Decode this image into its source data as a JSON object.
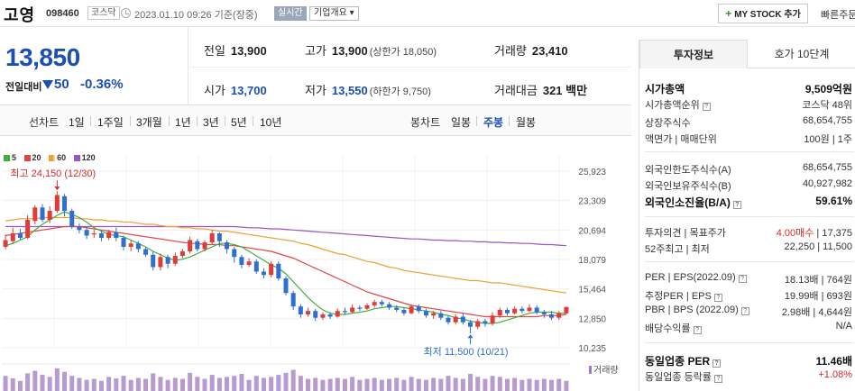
{
  "header": {
    "stock_name": "고영",
    "stock_code": "098460",
    "market": "코스닥",
    "datetime": "2023.01.10 09:26",
    "basis": "기준(장중)",
    "realtime_label": "실시간",
    "company_overview": "기업개요",
    "my_stock_label": "MY STOCK 추가",
    "quick_search": "빠른주문"
  },
  "summary": {
    "price": "13,850",
    "change_label": "전일대비",
    "change": "50",
    "change_pct": "-0.36%",
    "prev_close_label": "전일",
    "prev_close": "13,900",
    "high_label": "고가",
    "high": "13,900",
    "upper_limit": "(상한가 18,050)",
    "volume_label": "거래량",
    "volume": "23,410",
    "open_label": "시가",
    "open": "13,700",
    "low_label": "저가",
    "low": "13,550",
    "lower_limit": "(하한가 9,750)",
    "amount_label": "거래대금",
    "amount": "321",
    "amount_unit": "백만"
  },
  "period": {
    "line_title": "선차트",
    "line_items": [
      "1일",
      "1주일",
      "3개월",
      "1년",
      "3년",
      "5년",
      "10년"
    ],
    "candle_title": "봉차트",
    "candle_items": [
      "일봉",
      "주봉",
      "월봉"
    ],
    "candle_selected": "주봉"
  },
  "chart_data": {
    "type": "candlestick",
    "legend": [
      "5",
      "20",
      "60",
      "120"
    ],
    "legend_colors": [
      "#3cb13c",
      "#e04545",
      "#f0a030",
      "#9a55c0"
    ],
    "y_ticks": [
      25923,
      23309,
      20694,
      18079,
      15464,
      12850,
      10235
    ],
    "y_tick_labels": [
      "25,923",
      "23,309",
      "20,694",
      "18,079",
      "15,464",
      "12,850",
      "10,235"
    ],
    "ylim": [
      10235,
      25923
    ],
    "high_annotation": "최고 24,150 (12/30)",
    "low_annotation": "최저 11,500 (10/21)",
    "volume_label": "거래량",
    "candles": [
      [
        19200,
        19800,
        20300,
        19000
      ],
      [
        19700,
        20400,
        20900,
        19500
      ],
      [
        20400,
        20000,
        20800,
        19800
      ],
      [
        20000,
        21600,
        22000,
        19900
      ],
      [
        21500,
        22700,
        22900,
        21200
      ],
      [
        22700,
        21600,
        23000,
        21400
      ],
      [
        21600,
        22400,
        22800,
        21300
      ],
      [
        22400,
        23800,
        24150,
        22200
      ],
      [
        23700,
        22400,
        23900,
        21900
      ],
      [
        22400,
        21000,
        22600,
        20800
      ],
      [
        21000,
        20700,
        21300,
        20400
      ],
      [
        20700,
        20200,
        21000,
        19900
      ],
      [
        20300,
        20400,
        20700,
        20000
      ],
      [
        20400,
        20000,
        20600,
        19700
      ],
      [
        20000,
        20500,
        20700,
        19800
      ],
      [
        20500,
        20000,
        20900,
        19700
      ],
      [
        20000,
        19200,
        20200,
        18900
      ],
      [
        19200,
        19500,
        19800,
        18800
      ],
      [
        19500,
        19000,
        19700,
        18700
      ],
      [
        19000,
        18500,
        19200,
        18300
      ],
      [
        18500,
        17400,
        18800,
        17100
      ],
      [
        17400,
        18300,
        18600,
        17100
      ],
      [
        18300,
        17700,
        18500,
        17300
      ],
      [
        17700,
        18400,
        18700,
        17500
      ],
      [
        18400,
        18800,
        19000,
        18200
      ],
      [
        18800,
        19800,
        20100,
        18600
      ],
      [
        19700,
        19000,
        19900,
        18800
      ],
      [
        19000,
        19600,
        19800,
        18800
      ],
      [
        19600,
        20400,
        20700,
        19400
      ],
      [
        20400,
        19700,
        20500,
        19200
      ],
      [
        19600,
        19000,
        19800,
        18600
      ],
      [
        19000,
        18300,
        19200,
        17800
      ],
      [
        18300,
        17600,
        18500,
        17300
      ],
      [
        17600,
        17900,
        18200,
        17400
      ],
      [
        17900,
        17000,
        18100,
        16800
      ],
      [
        17000,
        16700,
        17300,
        16400
      ],
      [
        16700,
        17700,
        17900,
        16500
      ],
      [
        17700,
        16400,
        17900,
        16200
      ],
      [
        16400,
        15100,
        16600,
        14900
      ],
      [
        15100,
        13900,
        15300,
        13600
      ],
      [
        13900,
        13200,
        14100,
        12900
      ],
      [
        13200,
        13500,
        13800,
        13000
      ],
      [
        13500,
        12900,
        13700,
        12600
      ],
      [
        12900,
        13200,
        13400,
        12700
      ],
      [
        13200,
        13000,
        13400,
        12800
      ],
      [
        13000,
        13500,
        13700,
        12900
      ],
      [
        13500,
        13400,
        13800,
        13200
      ],
      [
        13400,
        13800,
        14100,
        13300
      ],
      [
        13800,
        13700,
        14000,
        13500
      ],
      [
        13700,
        14000,
        14200,
        13600
      ],
      [
        14000,
        14300,
        14500,
        13800
      ],
      [
        14300,
        14100,
        14500,
        13900
      ],
      [
        14100,
        13800,
        14300,
        13600
      ],
      [
        13800,
        13600,
        14000,
        13400
      ],
      [
        13600,
        13300,
        13800,
        13100
      ],
      [
        13300,
        13900,
        14100,
        13200
      ],
      [
        13900,
        13500,
        14100,
        13300
      ],
      [
        13500,
        13100,
        13700,
        12900
      ],
      [
        13100,
        13300,
        13500,
        12800
      ],
      [
        13300,
        12900,
        13500,
        12700
      ],
      [
        12900,
        12500,
        13100,
        12300
      ],
      [
        12500,
        13000,
        13200,
        12300
      ],
      [
        13000,
        12500,
        13300,
        12300
      ],
      [
        12500,
        12100,
        12700,
        11500
      ],
      [
        12100,
        12600,
        12800,
        11900
      ],
      [
        12600,
        12400,
        12800,
        12100
      ],
      [
        12400,
        13100,
        13400,
        12200
      ],
      [
        13100,
        13600,
        13800,
        12900
      ],
      [
        13600,
        13300,
        13800,
        13100
      ],
      [
        13300,
        13700,
        13900,
        13200
      ],
      [
        13700,
        13500,
        13900,
        13300
      ],
      [
        13500,
        13800,
        14100,
        13400
      ],
      [
        13800,
        13400,
        14000,
        13200
      ],
      [
        13400,
        13200,
        13600,
        12900
      ],
      [
        13200,
        12900,
        13500,
        12700
      ],
      [
        12900,
        13300,
        13500,
        12700
      ],
      [
        13300,
        13850,
        13900,
        13200
      ]
    ],
    "ma5": [
      19300,
      19500,
      19800,
      20100,
      20700,
      21200,
      21600,
      22000,
      22300,
      22100,
      21800,
      21400,
      20900,
      20600,
      20300,
      20200,
      20100,
      19800,
      19500,
      19200,
      18800,
      18500,
      18200,
      18000,
      18100,
      18300,
      18600,
      18900,
      19200,
      19500,
      19500,
      19400,
      19200,
      18800,
      18400,
      18000,
      17600,
      17300,
      16800,
      16100,
      15400,
      14700,
      14100,
      13600,
      13300,
      13200,
      13200,
      13300,
      13400,
      13500,
      13700,
      13800,
      13900,
      13900,
      13800,
      13700,
      13600,
      13500,
      13400,
      13200,
      13100,
      12900,
      12800,
      12600,
      12500,
      12400,
      12400,
      12500,
      12700,
      12900,
      13100,
      13300,
      13400,
      13400,
      13400,
      13300,
      13300
    ],
    "ma20": [
      20200,
      20300,
      20400,
      20500,
      20600,
      20700,
      20800,
      20900,
      21000,
      21000,
      21000,
      20900,
      20800,
      20700,
      20600,
      20500,
      20400,
      20300,
      20200,
      20100,
      20000,
      19900,
      19800,
      19700,
      19600,
      19500,
      19500,
      19400,
      19400,
      19400,
      19300,
      19300,
      19200,
      19100,
      19000,
      18900,
      18800,
      18600,
      18400,
      18200,
      17900,
      17600,
      17300,
      17000,
      16700,
      16400,
      16100,
      15800,
      15500,
      15200,
      15000,
      14800,
      14600,
      14400,
      14200,
      14000,
      13900,
      13800,
      13700,
      13600,
      13500,
      13400,
      13300,
      13200,
      13100,
      13000,
      13000,
      13000,
      13000,
      13000,
      13000,
      13000,
      13000,
      13100,
      13100,
      13100,
      13200
    ],
    "ma60": [
      21500,
      21600,
      21700,
      21700,
      21700,
      21800,
      21800,
      21800,
      21800,
      21800,
      21700,
      21700,
      21600,
      21600,
      21500,
      21500,
      21400,
      21400,
      21300,
      21200,
      21200,
      21100,
      21000,
      21000,
      20900,
      20900,
      20800,
      20800,
      20700,
      20600,
      20600,
      20500,
      20400,
      20300,
      20200,
      20100,
      20000,
      19900,
      19800,
      19700,
      19500,
      19400,
      19200,
      19000,
      18800,
      18600,
      18500,
      18300,
      18100,
      17900,
      17800,
      17600,
      17400,
      17300,
      17100,
      17000,
      16900,
      16800,
      16700,
      16600,
      16500,
      16400,
      16300,
      16200,
      16200,
      16100,
      16000,
      16000,
      15900,
      15800,
      15700,
      15600,
      15500,
      15400,
      15300,
      15200,
      15100
    ],
    "ma120": [
      21000,
      21000,
      21000,
      21000,
      21000,
      21000,
      21000,
      21000,
      21000,
      21000,
      21000,
      21000,
      21000,
      21000,
      21000,
      21000,
      21000,
      21000,
      21000,
      21000,
      21000,
      21000,
      21000,
      21000,
      21000,
      21000,
      21000,
      21000,
      21000,
      21000,
      21000,
      21000,
      20950,
      20900,
      20900,
      20850,
      20800,
      20800,
      20750,
      20700,
      20650,
      20600,
      20550,
      20500,
      20450,
      20400,
      20350,
      20300,
      20250,
      20200,
      20150,
      20100,
      20050,
      20000,
      19950,
      19900,
      19900,
      19850,
      19800,
      19800,
      19750,
      19750,
      19700,
      19700,
      19650,
      19650,
      19600,
      19600,
      19550,
      19550,
      19500,
      19500,
      19450,
      19400,
      19400,
      19350,
      19300
    ],
    "volume": [
      30,
      25,
      20,
      35,
      40,
      32,
      28,
      45,
      38,
      30,
      26,
      22,
      24,
      20,
      28,
      25,
      30,
      22,
      26,
      24,
      35,
      28,
      22,
      26,
      24,
      36,
      28,
      24,
      32,
      26,
      28,
      30,
      34,
      22,
      30,
      26,
      28,
      32,
      36,
      42,
      30,
      24,
      26,
      22,
      24,
      26,
      24,
      28,
      22,
      24,
      26,
      22,
      24,
      26,
      22,
      28,
      24,
      22,
      26,
      24,
      30,
      26,
      24,
      34,
      28,
      24,
      30,
      28,
      24,
      26,
      22,
      24,
      22,
      24,
      22,
      24,
      20
    ]
  },
  "right_panel": {
    "tab_invest": "투자정보",
    "tab_orderbook": "호가 10단계",
    "rows": [
      {
        "k": "시가총액",
        "v": "9,509억원",
        "bold": true
      },
      {
        "k": "시가총액순위",
        "v": "코스닥 48위",
        "help": true
      },
      {
        "k": "상장주식수",
        "v": "68,654,755"
      },
      {
        "k": "액면가 | 매매단위",
        "v": "100원 | 1주"
      },
      {
        "k": "외국인한도주식수(A)",
        "v": "68,654,755"
      },
      {
        "k": "외국인보유주식수(B)",
        "v": "40,927,982"
      },
      {
        "k": "외국인소진율(B/A)",
        "v": "59.61%",
        "bold": true,
        "help": true
      },
      {
        "k": "투자의견 | 목표주가",
        "v_red": "4.00매수",
        "v": " | 17,375"
      },
      {
        "k": "52주최고 | 최저",
        "v": "22,250 | 11,500"
      },
      {
        "k": "PER | EPS(2022.09)",
        "v": "18.13배 | 764원",
        "help": true
      },
      {
        "k": "추정PER | EPS",
        "v": "19.99배 | 693원",
        "help": true
      },
      {
        "k": "PBR | BPS (2022.09)",
        "v": "2.98배 | 4,644원",
        "help": true
      },
      {
        "k": "배당수익률",
        "v": "N/A",
        "help": true
      },
      {
        "k": "동일업종 PER",
        "v": "11.46배",
        "bold": true,
        "help": true
      },
      {
        "k": "동일업종 등락률",
        "v_red": "+1.08%",
        "help": true
      }
    ]
  }
}
